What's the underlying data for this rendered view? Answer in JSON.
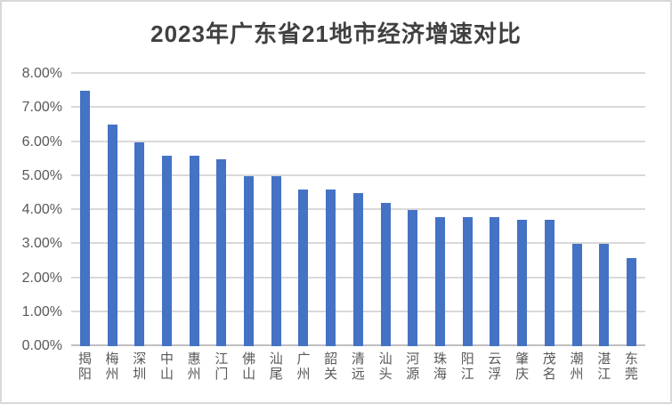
{
  "window": {
    "background_color": "#ffffff",
    "border_color": "#d9d9d9"
  },
  "chart_data": {
    "type": "bar",
    "title": "2023年广东省21地市经济增速对比",
    "categories": [
      "揭阳",
      "梅州",
      "深圳",
      "中山",
      "惠州",
      "江门",
      "佛山",
      "汕尾",
      "广州",
      "韶关",
      "清远",
      "汕头",
      "河源",
      "珠海",
      "阳江",
      "云浮",
      "肇庆",
      "茂名",
      "潮州",
      "湛江",
      "东莞"
    ],
    "values": [
      7.5,
      6.5,
      6.0,
      5.6,
      5.6,
      5.5,
      5.0,
      5.0,
      4.6,
      4.6,
      4.5,
      4.2,
      4.0,
      3.8,
      3.8,
      3.8,
      3.7,
      3.7,
      3.0,
      3.0,
      2.6
    ],
    "value_unit": "%",
    "xlabel": "",
    "ylabel": "",
    "ylim": [
      0,
      8
    ],
    "ytick_labels": [
      "0.00%",
      "1.00%",
      "2.00%",
      "3.00%",
      "4.00%",
      "5.00%",
      "6.00%",
      "7.00%",
      "8.00%"
    ],
    "grid": true,
    "legend_position": "none",
    "bar_color": "#4472c4",
    "gridline_color": "#d9d9d9",
    "axis_line_color": "#bfbfbf",
    "tick_label_color": "#595959",
    "title_color": "#404040"
  }
}
